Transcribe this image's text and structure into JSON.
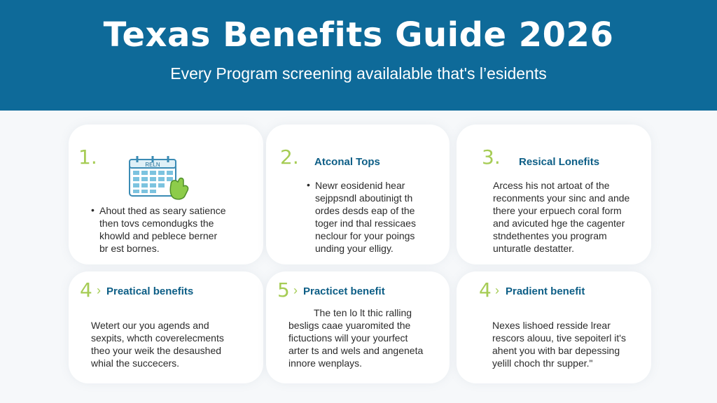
{
  "header": {
    "title": "Texas Benefits Guide 2026",
    "subtitle": "Every Program screening availalable that's l’esidents"
  },
  "calendar_icon": {
    "label": "RELN"
  },
  "colors": {
    "header": "#0e6a99",
    "accent": "#a6cc55",
    "heading": "#0d5e86"
  },
  "cards": [
    {
      "number": "1.",
      "heading": "",
      "bullet": "•",
      "lines": [
        "Ahout thed as seary satience",
        "then tovs cemondugks the",
        "khowld and peblece berner",
        "br est bornes."
      ]
    },
    {
      "number": "2.",
      "heading": "Atconal Tops",
      "bullet": "•",
      "lines": [
        "Newr eosidenid hear",
        "sejppsndl aboutinigt th",
        "ordes desds eap of the",
        "toger ind thal ressicaes",
        "neclour for your poings",
        "unding your elligy."
      ]
    },
    {
      "number": "3.",
      "heading": "Resical Lonefits",
      "bullet": "",
      "lines": [
        "Arcess his not artoat of the",
        "reconments your sinc and ande",
        "there your erpuech coral form",
        "and avicuted hge the cagenter",
        "stndethentes you program",
        "unturatle destatter."
      ]
    },
    {
      "number": "4",
      "heading": "Preatical benefits",
      "bullet": "",
      "lines": [
        "Wetert our you agends and",
        "sexpits, whcth coverelecments",
        "theo your weik the desaushed",
        "whial the succecers."
      ]
    },
    {
      "number": "5",
      "heading": "Practicet benefit",
      "bullet": "",
      "lines": [
        "The ten lo lt thic ralling",
        "besligs caae yuaromited the",
        "fictuctions will your yourfect",
        "arter ts and wels and angeneta",
        "innore wenplays."
      ]
    },
    {
      "number": "4",
      "heading": "Pradient benefit",
      "bullet": "",
      "lines": [
        "Nexes lishoed resside lrear",
        "rescors alouu, tive sepoiterl it's",
        "ahent you with bar depessing",
        "yelill choch thr supper.\""
      ]
    }
  ]
}
